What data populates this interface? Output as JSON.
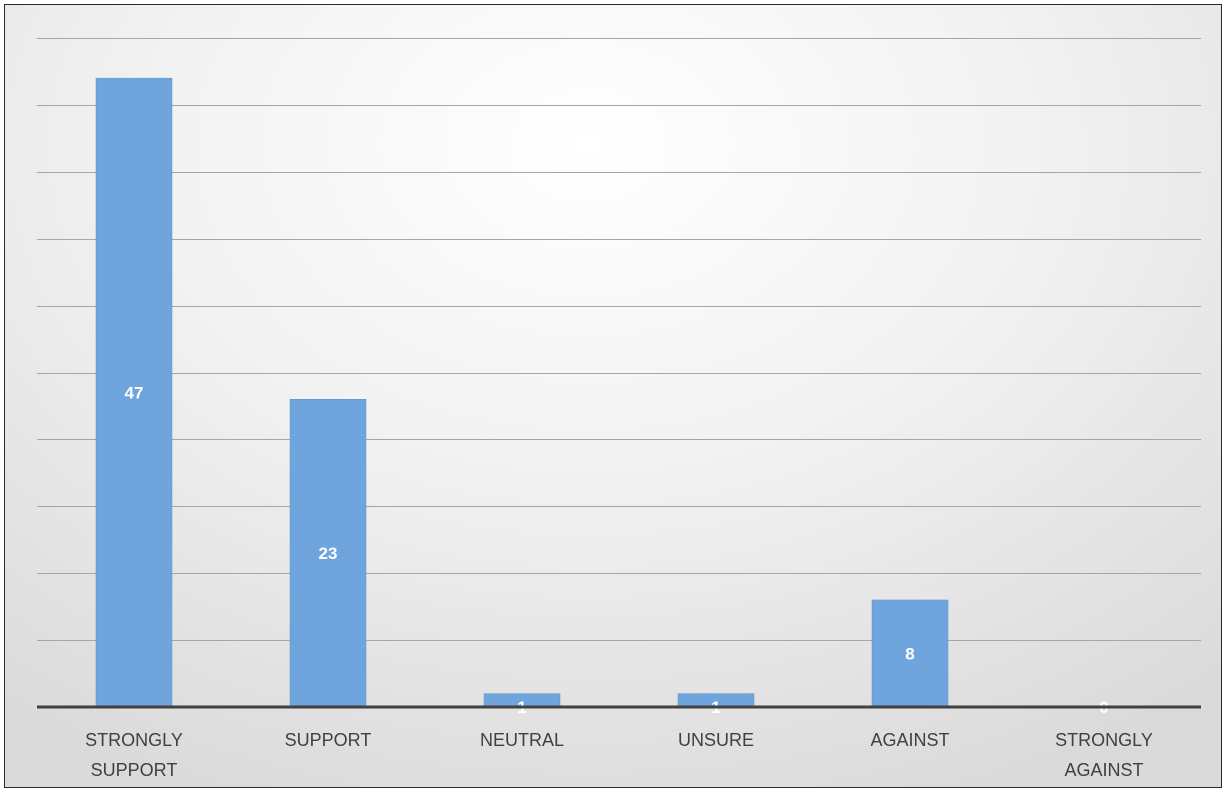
{
  "chart_data": {
    "type": "bar",
    "categories": [
      [
        "STRONGLY",
        "SUPPORT"
      ],
      [
        "SUPPORT"
      ],
      [
        "NEUTRAL"
      ],
      [
        "UNSURE"
      ],
      [
        "AGAINST"
      ],
      [
        "STRONGLY",
        "AGAINST"
      ]
    ],
    "values": [
      47,
      23,
      1,
      1,
      8,
      0
    ],
    "data_labels": [
      "47",
      "23",
      "1",
      "1",
      "8",
      "0"
    ],
    "ylim": [
      0,
      50
    ],
    "grid": true,
    "legend": "none",
    "colors": {
      "bar": "#6fa5dc",
      "bar_edge": "#5d95d0",
      "gridline": "#a6a6a6",
      "axis": "#404040"
    }
  }
}
